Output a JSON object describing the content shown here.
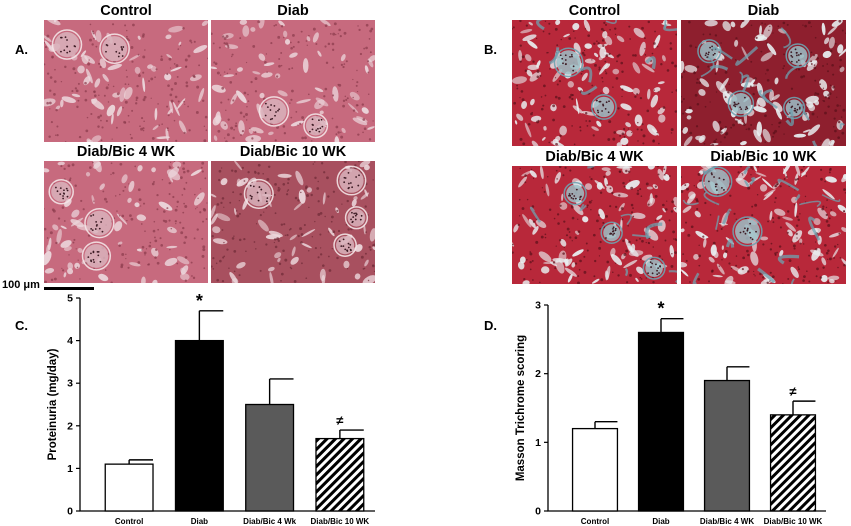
{
  "panels": {
    "A": {
      "letter": "A.",
      "images": [
        {
          "title": "Control",
          "kind": "he"
        },
        {
          "title": "Diab",
          "kind": "he"
        },
        {
          "title": "Diab/Bic 4 WK",
          "kind": "he"
        },
        {
          "title": "Diab/Bic 10 WK",
          "kind": "he-dark"
        }
      ],
      "scale_bar_label": "100 μm"
    },
    "B": {
      "letter": "B.",
      "images": [
        {
          "title": "Control",
          "kind": "masson"
        },
        {
          "title": "Diab",
          "kind": "masson-dark"
        },
        {
          "title": "Diab/Bic 4 WK",
          "kind": "masson"
        },
        {
          "title": "Diab/Bic 10 WK",
          "kind": "masson-mixed"
        }
      ]
    },
    "C": {
      "letter": "C."
    },
    "D": {
      "letter": "D."
    }
  },
  "colors": {
    "he_base": "#c76a7e",
    "he_dark": "#a8505f",
    "masson_red": "#b8283a",
    "masson_blue": "#6fa2b0",
    "bar_control": "#ffffff",
    "bar_diab": "#000000",
    "bar_bic4": "#5a5a5a"
  },
  "chart_data": [
    {
      "type": "bar",
      "title": "",
      "xlabel": "",
      "ylabel": "Proteinuria (mg/day)",
      "ylim": [
        0,
        5
      ],
      "yticks": [
        "0",
        "1",
        "2",
        "3",
        "4",
        "5"
      ],
      "categories": [
        "Control",
        "Diab",
        "Diab/Bic 4 Wk",
        "Diab/Bic 10 WK"
      ],
      "values": [
        1.1,
        4.0,
        2.5,
        1.7
      ],
      "errors": [
        0.1,
        0.7,
        0.6,
        0.2
      ],
      "markers": [
        "",
        "*",
        "",
        "≠"
      ],
      "fills": [
        "white",
        "black",
        "gray",
        "hatched"
      ]
    },
    {
      "type": "bar",
      "title": "",
      "xlabel": "",
      "ylabel": "Masson Trichrome scoring",
      "ylim": [
        0,
        3
      ],
      "yticks": [
        "0",
        "1",
        "2",
        "3"
      ],
      "categories": [
        "Control",
        "Diab",
        "Diab/Bic 4 WK",
        "Diab/Bic 10 WK"
      ],
      "values": [
        1.2,
        2.6,
        1.9,
        1.4
      ],
      "errors": [
        0.1,
        0.2,
        0.2,
        0.2
      ],
      "markers": [
        "",
        "*",
        "",
        "≠"
      ],
      "fills": [
        "white",
        "black",
        "gray",
        "hatched"
      ]
    }
  ]
}
